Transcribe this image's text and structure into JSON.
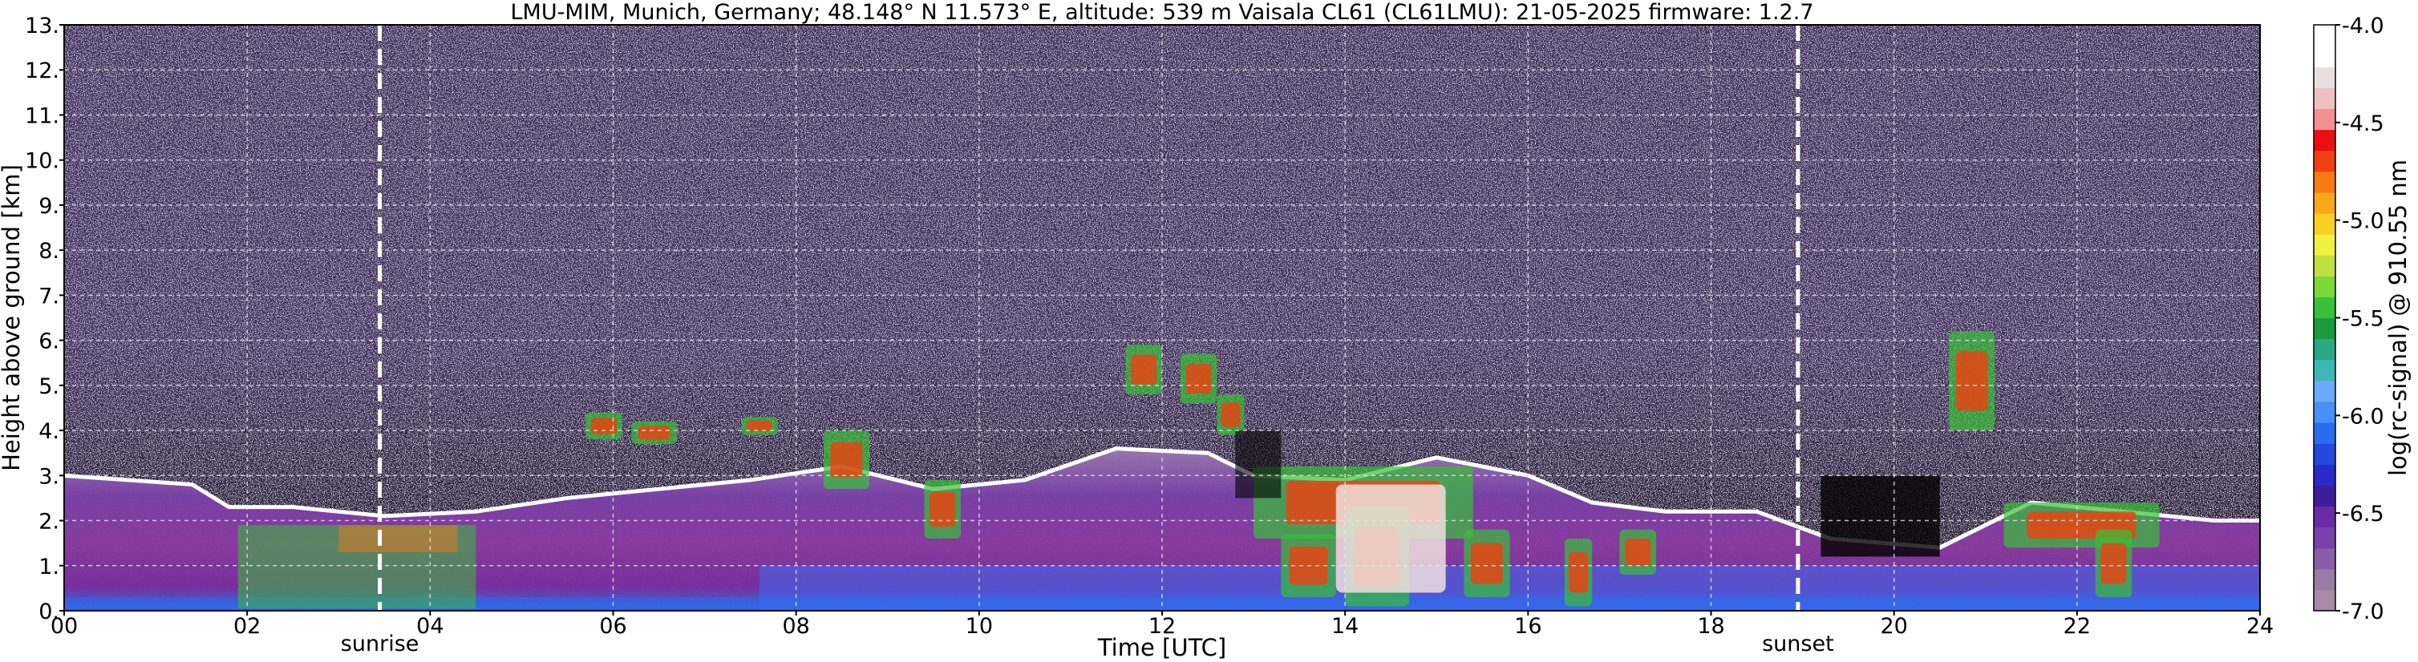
{
  "chart_data": {
    "type": "heatmap",
    "title": "LMU-MIM, Munich, Germany; 48.148° N 11.573° E, altitude: 539 m    Vaisala CL61 (CL61LMU): 21-05-2025    firmware: 1.2.7",
    "xlabel": "Time [UTC]",
    "ylabel": "Height above ground [km]",
    "xlim": [
      0,
      24
    ],
    "ylim": [
      0,
      13
    ],
    "x_ticks": [
      "00",
      "02",
      "04",
      "06",
      "08",
      "10",
      "12",
      "14",
      "16",
      "18",
      "20",
      "22",
      "24"
    ],
    "x_tick_values": [
      0,
      2,
      4,
      6,
      8,
      10,
      12,
      14,
      16,
      18,
      20,
      22,
      24
    ],
    "y_ticks": [
      "0.",
      "1.",
      "2.",
      "3.",
      "4.",
      "5.",
      "6.",
      "7.",
      "8.",
      "9.",
      "10.",
      "11.",
      "12.",
      "13."
    ],
    "y_tick_values": [
      0,
      1,
      2,
      3,
      4,
      5,
      6,
      7,
      8,
      9,
      10,
      11,
      12,
      13
    ],
    "grid": true,
    "annotations": [
      {
        "text": "sunrise",
        "x": 3.45
      },
      {
        "text": "sunset",
        "x": 18.95
      }
    ],
    "boundary_layer_top_km": [
      [
        0,
        3.0
      ],
      [
        1.4,
        2.8
      ],
      [
        1.8,
        2.3
      ],
      [
        2.5,
        2.3
      ],
      [
        3.5,
        2.1
      ],
      [
        4.5,
        2.2
      ],
      [
        5.5,
        2.5
      ],
      [
        6.5,
        2.7
      ],
      [
        7.5,
        2.9
      ],
      [
        8.5,
        3.2
      ],
      [
        9.5,
        2.7
      ],
      [
        10.5,
        2.9
      ],
      [
        11.5,
        3.6
      ],
      [
        12.5,
        3.5
      ],
      [
        13,
        3.0
      ],
      [
        14,
        2.9
      ],
      [
        15,
        3.4
      ],
      [
        16,
        3.0
      ],
      [
        16.7,
        2.4
      ],
      [
        17.5,
        2.2
      ],
      [
        18.5,
        2.2
      ],
      [
        19.3,
        1.6
      ],
      [
        20.5,
        1.4
      ],
      [
        21.5,
        2.4
      ],
      [
        22.5,
        2.2
      ],
      [
        23.5,
        2.0
      ],
      [
        24,
        2.0
      ]
    ],
    "colorbar": {
      "label": "log(rc-signal) @ 910.55 nm",
      "range": [
        -7.0,
        -4.0
      ],
      "ticks": [
        "-4.0",
        "-4.5",
        "-5.0",
        "-5.5",
        "-6.0",
        "-6.5",
        "-7.0"
      ],
      "tick_values": [
        -4.0,
        -4.5,
        -5.0,
        -5.5,
        -6.0,
        -6.5,
        -7.0
      ],
      "colors": [
        "#a68aa8",
        "#9a7aa6",
        "#8a5da8",
        "#7a3fa8",
        "#6a2aa8",
        "#3c1e9a",
        "#2a2acc",
        "#2448e0",
        "#2a6cf0",
        "#4a8ef8",
        "#6aaaf8",
        "#3cb8b8",
        "#2aa888",
        "#1a9a3a",
        "#38c038",
        "#7ad838",
        "#c0e040",
        "#f0f040",
        "#f8d020",
        "#f8a818",
        "#f87a10",
        "#f04010",
        "#e81010",
        "#f09090",
        "#f0c0c0",
        "#e8e0e0",
        "#ffffff",
        "#ffffff"
      ]
    }
  }
}
